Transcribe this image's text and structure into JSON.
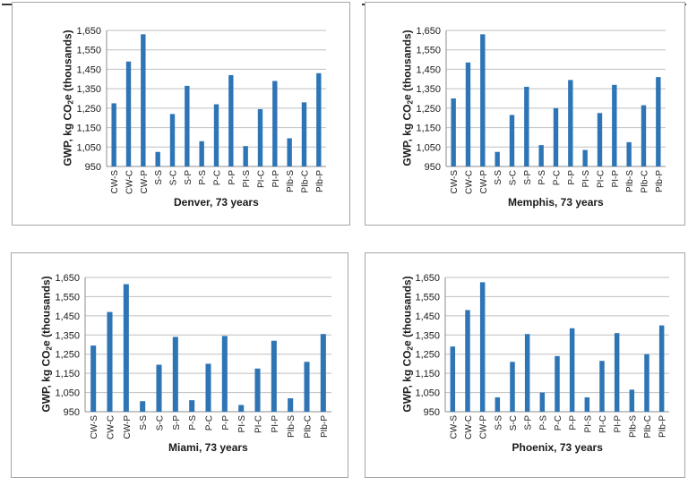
{
  "chart_data": [
    {
      "type": "bar",
      "title": "Denver, 73 years",
      "ylabel": "GWP, kg CO2e (thousands)",
      "ylim": [
        950,
        1650
      ],
      "yticks": [
        "950",
        "1,050",
        "1,150",
        "1,250",
        "1,350",
        "1,450",
        "1,550",
        "1,650"
      ],
      "categories": [
        "CW-S",
        "CW-C",
        "CW-P",
        "S-S",
        "S-C",
        "S-P",
        "P-S",
        "P-C",
        "P-P",
        "PI-S",
        "PI-C",
        "PI-P",
        "PIb-S",
        "PIb-C",
        "PIb-P"
      ],
      "values": [
        1275,
        1490,
        1630,
        1025,
        1220,
        1365,
        1080,
        1270,
        1420,
        1055,
        1245,
        1390,
        1095,
        1280,
        1430
      ],
      "grid": true,
      "color": "#2e75b6"
    },
    {
      "type": "bar",
      "title": "Memphis, 73 years",
      "ylabel": "GWP, kg CO2e (thousands)",
      "ylim": [
        950,
        1650
      ],
      "yticks": [
        "950",
        "1,050",
        "1,150",
        "1,250",
        "1,350",
        "1,450",
        "1,550",
        "1,650"
      ],
      "categories": [
        "CW-S",
        "CW-C",
        "CW-P",
        "S-S",
        "S-C",
        "S-P",
        "P-S",
        "P-C",
        "P-P",
        "PI-S",
        "PI-C",
        "PI-P",
        "PIb-S",
        "PIb-C",
        "PIb-P"
      ],
      "values": [
        1300,
        1485,
        1630,
        1025,
        1215,
        1360,
        1060,
        1250,
        1395,
        1035,
        1225,
        1370,
        1075,
        1265,
        1410
      ],
      "grid": true,
      "color": "#2e75b6"
    },
    {
      "type": "bar",
      "title": "Miami, 73 years",
      "ylabel": "GWP, kg CO2e (thousands)",
      "ylim": [
        950,
        1650
      ],
      "yticks": [
        "950",
        "1,050",
        "1,150",
        "1,250",
        "1,350",
        "1,450",
        "1,550",
        "1,650"
      ],
      "categories": [
        "CW-S",
        "CW-C",
        "CW-P",
        "S-S",
        "S-C",
        "S-P",
        "P-S",
        "P-C",
        "P-P",
        "PI-S",
        "PI-C",
        "PI-P",
        "PIb-S",
        "PIb-C",
        "PIb-P"
      ],
      "values": [
        1295,
        1470,
        1615,
        1005,
        1195,
        1340,
        1010,
        1200,
        1345,
        985,
        1175,
        1320,
        1020,
        1210,
        1355
      ],
      "grid": true,
      "color": "#2e75b6"
    },
    {
      "type": "bar",
      "title": "Phoenix, 73 years",
      "ylabel": "GWP, kg CO2e (thousands)",
      "ylim": [
        950,
        1650
      ],
      "yticks": [
        "950",
        "1,050",
        "1,150",
        "1,250",
        "1,350",
        "1,450",
        "1,550",
        "1,650"
      ],
      "categories": [
        "CW-S",
        "CW-C",
        "CW-P",
        "S-S",
        "S-C",
        "S-P",
        "P-S",
        "P-C",
        "P-P",
        "PI-S",
        "PI-C",
        "PI-P",
        "PIb-S",
        "PIb-C",
        "PIb-P"
      ],
      "values": [
        1290,
        1480,
        1625,
        1025,
        1210,
        1355,
        1050,
        1240,
        1385,
        1025,
        1215,
        1360,
        1065,
        1250,
        1400
      ],
      "grid": true,
      "color": "#2e75b6"
    }
  ]
}
